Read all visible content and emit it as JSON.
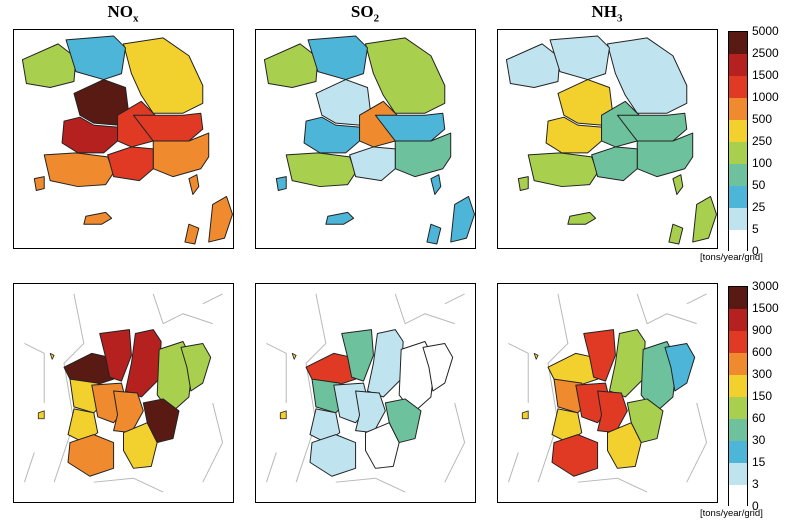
{
  "titles": [
    {
      "base": "NO",
      "sub": "x"
    },
    {
      "base": "SO",
      "sub": "2"
    },
    {
      "base": "NH",
      "sub": "3"
    }
  ],
  "legend_top": {
    "ticks": [
      "5000",
      "2500",
      "1500",
      "1000",
      "500",
      "250",
      "100",
      "50",
      "25",
      "5",
      "0"
    ],
    "colors": [
      "#5a1a14",
      "#b5211f",
      "#e03a24",
      "#ef8a2e",
      "#f2d02e",
      "#a9cf4e",
      "#6dc19c",
      "#4cb5d8",
      "#bfe3ef",
      "#ffffff"
    ],
    "unit": "[tons/year/grid]"
  },
  "legend_bottom": {
    "ticks": [
      "3000",
      "1500",
      "900",
      "600",
      "300",
      "150",
      "60",
      "30",
      "15",
      "3",
      "0"
    ],
    "colors": [
      "#5a1a14",
      "#b5211f",
      "#e03a24",
      "#ef8a2e",
      "#f2d02e",
      "#a9cf4e",
      "#6dc19c",
      "#4cb5d8",
      "#bfe3ef",
      "#ffffff"
    ],
    "unit": "[tons/year/grid]"
  },
  "maps": {
    "korea_nox": [
      "#f2d02e",
      "#5a1a14",
      "#b5211f",
      "#e03a24",
      "#e03a24",
      "#ef8a2e",
      "#ef8a2e",
      "#e03a24",
      "#a9cf4e",
      "#4cb5d8",
      "#ef8a2e"
    ],
    "korea_so2": [
      "#a9cf4e",
      "#bfe3ef",
      "#4cb5d8",
      "#ef8a2e",
      "#4cb5d8",
      "#6dc19c",
      "#a9cf4e",
      "#bfe3ef",
      "#a9cf4e",
      "#4cb5d8",
      "#4cb5d8"
    ],
    "korea_nh3": [
      "#bfe3ef",
      "#f2d02e",
      "#f2d02e",
      "#6dc19c",
      "#6dc19c",
      "#6dc19c",
      "#a9cf4e",
      "#6dc19c",
      "#bfe3ef",
      "#bfe3ef",
      "#a9cf4e"
    ],
    "region_nox": [
      "#5a1a14",
      "#b5211f",
      "#b5211f",
      "#a9cf4e",
      "#a9cf4e",
      "#f2d02e",
      "#ef8a2e",
      "#ef8a2e",
      "#f2d02e",
      "#f2d02e",
      "#ef8a2e",
      "#5a1a14"
    ],
    "region_so2": [
      "#e03a24",
      "#6dc19c",
      "#bfe3ef",
      "#ffffff",
      "#ffffff",
      "#6dc19c",
      "#bfe3ef",
      "#bfe3ef",
      "#bfe3ef",
      "#ffffff",
      "#bfe3ef",
      "#6dc19c"
    ],
    "region_nh3": [
      "#f2d02e",
      "#e03a24",
      "#a9cf4e",
      "#6dc19c",
      "#4cb5d8",
      "#ef8a2e",
      "#e03a24",
      "#e03a24",
      "#f2d02e",
      "#f2d02e",
      "#e03a24",
      "#a9cf4e"
    ]
  }
}
